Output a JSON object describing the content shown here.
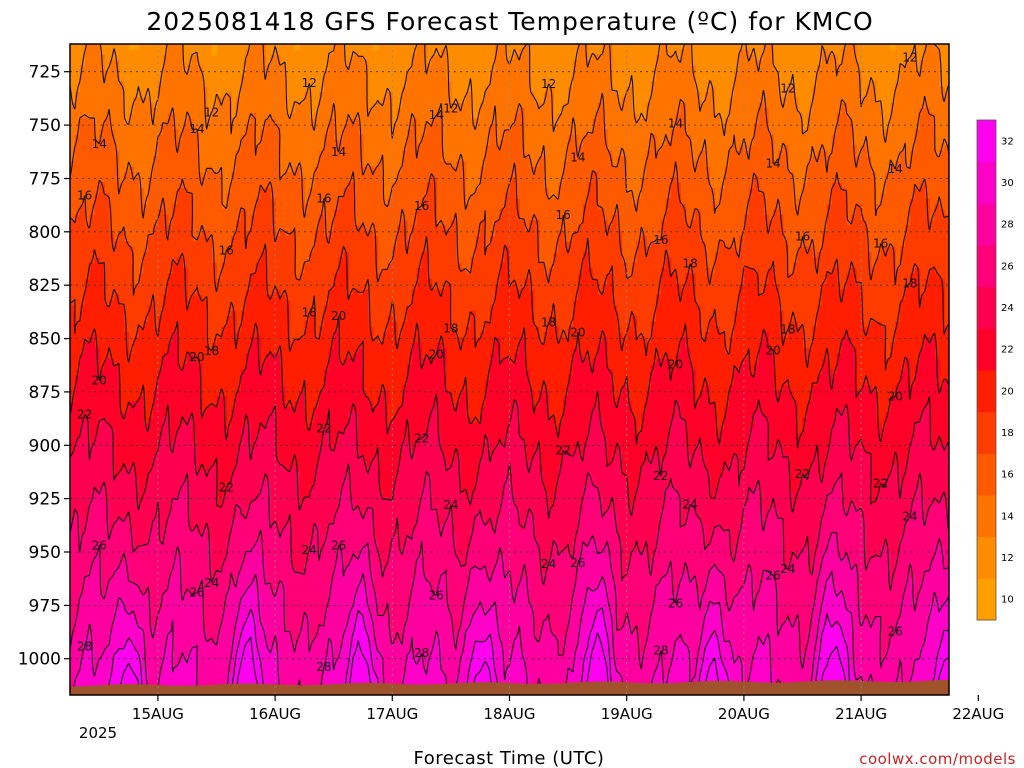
{
  "chart_data": {
    "type": "heatmap",
    "title": "2025081418 GFS Forecast Temperature (ºC) for KMCO",
    "xlabel": "Forecast Time (UTC)",
    "ylabel": "",
    "x_ticks": [
      "15AUG",
      "16AUG",
      "17AUG",
      "18AUG",
      "19AUG",
      "20AUG",
      "21AUG",
      "22AUG"
    ],
    "x_year_label": "2025",
    "x_range_hours": [
      -18,
      162
    ],
    "y_ticks": [
      725,
      750,
      775,
      800,
      825,
      850,
      875,
      900,
      925,
      950,
      975,
      1000
    ],
    "y_range_hpa": [
      712,
      1017
    ],
    "colorbar": {
      "ticks": [
        10,
        12,
        14,
        16,
        18,
        20,
        22,
        24,
        26,
        28,
        30,
        32
      ],
      "colors": [
        "#ffa000",
        "#ff8c00",
        "#ff7300",
        "#ff5a00",
        "#ff3c00",
        "#ff1e00",
        "#ff0028",
        "#ff0050",
        "#ff0078",
        "#ff00a0",
        "#ff00c8",
        "#ff00f0"
      ]
    },
    "contour_levels": [
      12,
      14,
      16,
      18,
      20,
      22,
      24,
      26,
      28,
      30,
      32
    ],
    "grid": true,
    "terrain_color": "#a0522d",
    "credit": "coolwx.com/models"
  }
}
